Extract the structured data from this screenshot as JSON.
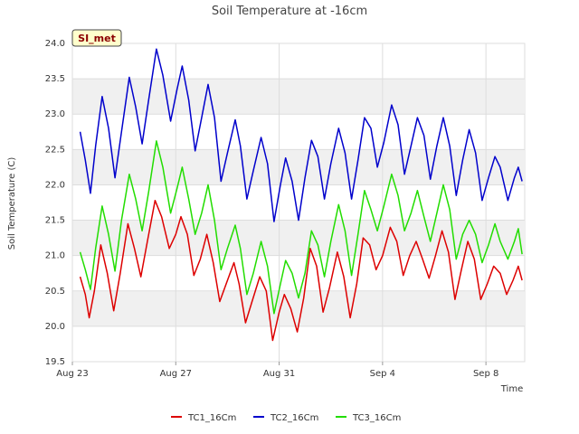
{
  "chart_data": {
    "type": "line",
    "title": "Soil Temperature at -16cm",
    "xlabel": "Time",
    "ylabel": "Soil Temperature (C)",
    "site_label": "SI_met",
    "ylim": [
      19.5,
      24.0
    ],
    "y_ticks": [
      "19.5",
      "20.0",
      "20.5",
      "21.0",
      "21.5",
      "22.0",
      "22.5",
      "23.0",
      "23.5",
      "24.0"
    ],
    "xlim_days": [
      0,
      17.5
    ],
    "x_ticks": [
      {
        "day": 0,
        "label": "Aug 23"
      },
      {
        "day": 4,
        "label": "Aug 27"
      },
      {
        "day": 8,
        "label": "Aug 31"
      },
      {
        "day": 12,
        "label": "Sep 4"
      },
      {
        "day": 16,
        "label": "Sep 8"
      }
    ],
    "x_start": "Aug 23",
    "grid": true,
    "legend_position": "bottom",
    "series": [
      {
        "name": "TC1_16Cm",
        "color": "#dd0000",
        "points": [
          [
            0.3,
            20.7
          ],
          [
            0.5,
            20.45
          ],
          [
            0.65,
            20.12
          ],
          [
            0.85,
            20.5
          ],
          [
            1.1,
            21.15
          ],
          [
            1.35,
            20.75
          ],
          [
            1.6,
            20.22
          ],
          [
            1.85,
            20.75
          ],
          [
            2.15,
            21.45
          ],
          [
            2.4,
            21.1
          ],
          [
            2.65,
            20.7
          ],
          [
            2.9,
            21.2
          ],
          [
            3.2,
            21.78
          ],
          [
            3.45,
            21.55
          ],
          [
            3.75,
            21.1
          ],
          [
            4.0,
            21.3
          ],
          [
            4.2,
            21.55
          ],
          [
            4.45,
            21.3
          ],
          [
            4.7,
            20.72
          ],
          [
            4.95,
            20.95
          ],
          [
            5.2,
            21.3
          ],
          [
            5.45,
            20.9
          ],
          [
            5.7,
            20.35
          ],
          [
            5.95,
            20.6
          ],
          [
            6.25,
            20.9
          ],
          [
            6.45,
            20.6
          ],
          [
            6.7,
            20.05
          ],
          [
            6.95,
            20.35
          ],
          [
            7.25,
            20.7
          ],
          [
            7.5,
            20.5
          ],
          [
            7.75,
            19.8
          ],
          [
            8.0,
            20.2
          ],
          [
            8.2,
            20.45
          ],
          [
            8.45,
            20.25
          ],
          [
            8.7,
            19.92
          ],
          [
            8.95,
            20.4
          ],
          [
            9.2,
            21.1
          ],
          [
            9.45,
            20.85
          ],
          [
            9.7,
            20.2
          ],
          [
            9.95,
            20.55
          ],
          [
            10.25,
            21.05
          ],
          [
            10.5,
            20.7
          ],
          [
            10.75,
            20.12
          ],
          [
            11.0,
            20.6
          ],
          [
            11.25,
            21.25
          ],
          [
            11.5,
            21.15
          ],
          [
            11.75,
            20.8
          ],
          [
            12.0,
            21.0
          ],
          [
            12.3,
            21.4
          ],
          [
            12.55,
            21.2
          ],
          [
            12.8,
            20.72
          ],
          [
            13.05,
            21.0
          ],
          [
            13.3,
            21.2
          ],
          [
            13.55,
            20.95
          ],
          [
            13.8,
            20.68
          ],
          [
            14.05,
            21.0
          ],
          [
            14.3,
            21.35
          ],
          [
            14.55,
            21.05
          ],
          [
            14.8,
            20.38
          ],
          [
            15.05,
            20.8
          ],
          [
            15.3,
            21.2
          ],
          [
            15.55,
            20.95
          ],
          [
            15.8,
            20.38
          ],
          [
            16.05,
            20.6
          ],
          [
            16.3,
            20.85
          ],
          [
            16.55,
            20.75
          ],
          [
            16.8,
            20.45
          ],
          [
            17.05,
            20.65
          ],
          [
            17.25,
            20.85
          ],
          [
            17.4,
            20.65
          ]
        ]
      },
      {
        "name": "TC2_16Cm",
        "color": "#0000cc",
        "points": [
          [
            0.3,
            22.75
          ],
          [
            0.5,
            22.35
          ],
          [
            0.7,
            21.88
          ],
          [
            0.9,
            22.55
          ],
          [
            1.15,
            23.25
          ],
          [
            1.4,
            22.8
          ],
          [
            1.65,
            22.1
          ],
          [
            1.9,
            22.75
          ],
          [
            2.2,
            23.52
          ],
          [
            2.45,
            23.1
          ],
          [
            2.7,
            22.58
          ],
          [
            2.95,
            23.2
          ],
          [
            3.25,
            23.92
          ],
          [
            3.5,
            23.55
          ],
          [
            3.8,
            22.9
          ],
          [
            4.05,
            23.35
          ],
          [
            4.25,
            23.68
          ],
          [
            4.5,
            23.2
          ],
          [
            4.75,
            22.48
          ],
          [
            5.0,
            22.95
          ],
          [
            5.25,
            23.42
          ],
          [
            5.5,
            22.95
          ],
          [
            5.75,
            22.05
          ],
          [
            6.0,
            22.45
          ],
          [
            6.3,
            22.92
          ],
          [
            6.5,
            22.55
          ],
          [
            6.75,
            21.8
          ],
          [
            7.0,
            22.2
          ],
          [
            7.3,
            22.67
          ],
          [
            7.55,
            22.3
          ],
          [
            7.8,
            21.48
          ],
          [
            8.05,
            22.0
          ],
          [
            8.25,
            22.38
          ],
          [
            8.5,
            22.05
          ],
          [
            8.75,
            21.5
          ],
          [
            9.0,
            22.1
          ],
          [
            9.25,
            22.63
          ],
          [
            9.5,
            22.4
          ],
          [
            9.75,
            21.8
          ],
          [
            10.0,
            22.3
          ],
          [
            10.3,
            22.8
          ],
          [
            10.55,
            22.45
          ],
          [
            10.8,
            21.8
          ],
          [
            11.05,
            22.35
          ],
          [
            11.3,
            22.95
          ],
          [
            11.55,
            22.8
          ],
          [
            11.8,
            22.25
          ],
          [
            12.05,
            22.6
          ],
          [
            12.35,
            23.13
          ],
          [
            12.6,
            22.85
          ],
          [
            12.85,
            22.15
          ],
          [
            13.1,
            22.55
          ],
          [
            13.35,
            22.95
          ],
          [
            13.6,
            22.7
          ],
          [
            13.85,
            22.08
          ],
          [
            14.1,
            22.55
          ],
          [
            14.35,
            22.95
          ],
          [
            14.6,
            22.55
          ],
          [
            14.85,
            21.85
          ],
          [
            15.1,
            22.35
          ],
          [
            15.35,
            22.78
          ],
          [
            15.6,
            22.45
          ],
          [
            15.85,
            21.78
          ],
          [
            16.1,
            22.1
          ],
          [
            16.35,
            22.4
          ],
          [
            16.55,
            22.25
          ],
          [
            16.85,
            21.78
          ],
          [
            17.1,
            22.1
          ],
          [
            17.25,
            22.25
          ],
          [
            17.4,
            22.05
          ]
        ]
      },
      {
        "name": "TC3_16Cm",
        "color": "#22dd00",
        "points": [
          [
            0.3,
            21.05
          ],
          [
            0.5,
            20.8
          ],
          [
            0.7,
            20.52
          ],
          [
            0.9,
            21.1
          ],
          [
            1.15,
            21.7
          ],
          [
            1.4,
            21.3
          ],
          [
            1.65,
            20.78
          ],
          [
            1.9,
            21.5
          ],
          [
            2.2,
            22.15
          ],
          [
            2.45,
            21.8
          ],
          [
            2.7,
            21.35
          ],
          [
            2.95,
            21.9
          ],
          [
            3.25,
            22.62
          ],
          [
            3.5,
            22.25
          ],
          [
            3.8,
            21.6
          ],
          [
            4.05,
            21.95
          ],
          [
            4.25,
            22.25
          ],
          [
            4.5,
            21.8
          ],
          [
            4.75,
            21.3
          ],
          [
            5.0,
            21.6
          ],
          [
            5.25,
            22.0
          ],
          [
            5.5,
            21.5
          ],
          [
            5.75,
            20.8
          ],
          [
            6.0,
            21.1
          ],
          [
            6.3,
            21.43
          ],
          [
            6.5,
            21.1
          ],
          [
            6.75,
            20.45
          ],
          [
            7.0,
            20.75
          ],
          [
            7.3,
            21.2
          ],
          [
            7.55,
            20.85
          ],
          [
            7.8,
            20.18
          ],
          [
            8.05,
            20.6
          ],
          [
            8.25,
            20.93
          ],
          [
            8.5,
            20.75
          ],
          [
            8.75,
            20.4
          ],
          [
            9.0,
            20.75
          ],
          [
            9.25,
            21.35
          ],
          [
            9.5,
            21.15
          ],
          [
            9.75,
            20.7
          ],
          [
            10.0,
            21.2
          ],
          [
            10.3,
            21.72
          ],
          [
            10.55,
            21.35
          ],
          [
            10.8,
            20.72
          ],
          [
            11.05,
            21.3
          ],
          [
            11.3,
            21.92
          ],
          [
            11.55,
            21.65
          ],
          [
            11.8,
            21.35
          ],
          [
            12.05,
            21.7
          ],
          [
            12.35,
            22.15
          ],
          [
            12.6,
            21.85
          ],
          [
            12.85,
            21.35
          ],
          [
            13.1,
            21.6
          ],
          [
            13.35,
            21.92
          ],
          [
            13.6,
            21.55
          ],
          [
            13.85,
            21.2
          ],
          [
            14.1,
            21.6
          ],
          [
            14.35,
            22.0
          ],
          [
            14.6,
            21.65
          ],
          [
            14.85,
            20.95
          ],
          [
            15.1,
            21.3
          ],
          [
            15.35,
            21.5
          ],
          [
            15.6,
            21.3
          ],
          [
            15.85,
            20.9
          ],
          [
            16.1,
            21.15
          ],
          [
            16.35,
            21.45
          ],
          [
            16.55,
            21.2
          ],
          [
            16.85,
            20.95
          ],
          [
            17.1,
            21.2
          ],
          [
            17.25,
            21.38
          ],
          [
            17.4,
            21.02
          ]
        ]
      }
    ]
  }
}
